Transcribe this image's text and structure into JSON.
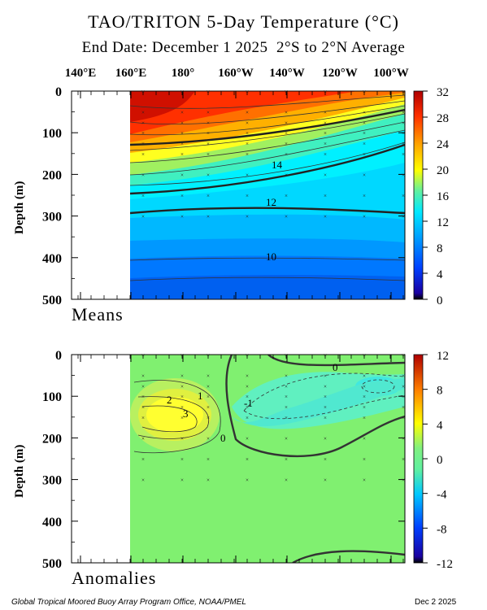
{
  "title": "TAO/TRITON 5-Day Temperature (°C)",
  "subtitle": "End Date: December 1 2025  2°S to 2°N Average",
  "longitude_labels": [
    "140°E",
    "160°E",
    "180°",
    "160°W",
    "140°W",
    "120°W",
    "100°W"
  ],
  "footer": {
    "left": "Global Tropical Moored Buoy Array Program Office, NOAA/PMEL",
    "right": "Dec  2 2025"
  },
  "chart_data": [
    {
      "type": "heatmap",
      "panel_label": "Means",
      "ylabel": "Depth (m)",
      "x_ticks": [
        "140°E",
        "160°E",
        "180°",
        "160°W",
        "140°W",
        "120°W",
        "100°W"
      ],
      "ylim": [
        500,
        0
      ],
      "y_ticks": [
        0,
        100,
        200,
        300,
        400,
        500
      ],
      "colorbar": {
        "ticks": [
          32,
          28,
          24,
          20,
          16,
          12,
          8,
          4,
          0
        ],
        "range": [
          0,
          32
        ]
      },
      "contour_labels": [
        "14",
        "12",
        "10"
      ],
      "data_region_start": "160°E"
    },
    {
      "type": "heatmap",
      "panel_label": "Anomalies",
      "ylabel": "Depth (m)",
      "x_ticks": [
        "140°E",
        "160°E",
        "180°",
        "160°W",
        "140°W",
        "120°W",
        "100°W"
      ],
      "ylim": [
        500,
        0
      ],
      "y_ticks": [
        0,
        100,
        200,
        300,
        400,
        500
      ],
      "colorbar": {
        "ticks": [
          12,
          8,
          4,
          0,
          -4,
          -8,
          -12
        ],
        "range": [
          -12,
          12
        ]
      },
      "contour_labels": [
        "2",
        "3",
        "1",
        "0",
        "-1",
        "0"
      ],
      "data_region_start": "160°E"
    }
  ]
}
